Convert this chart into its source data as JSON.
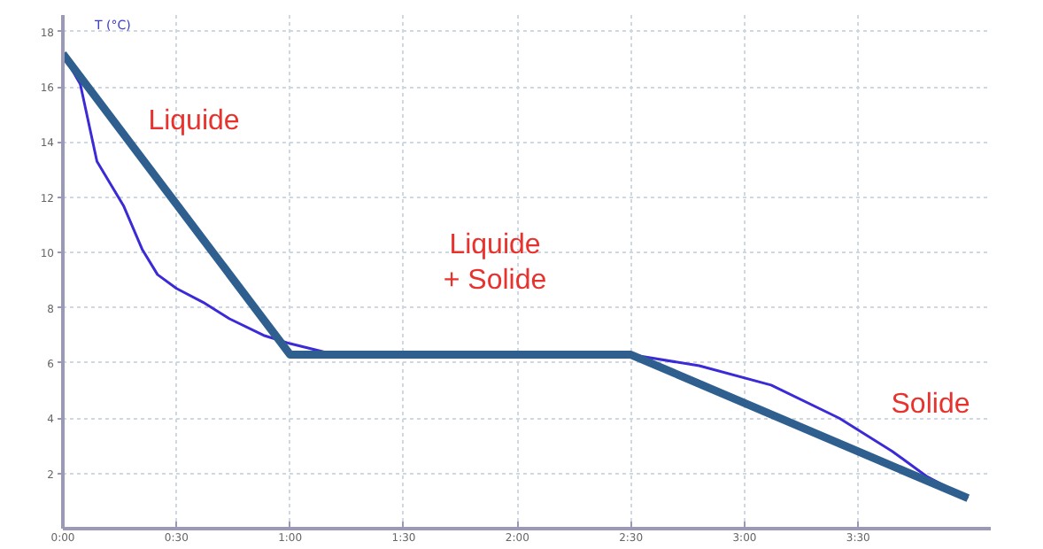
{
  "chart_data": {
    "type": "line",
    "ylabel": "T (°C)",
    "xlim": [
      0,
      245
    ],
    "ylim": [
      0,
      18.6
    ],
    "xticks": [
      {
        "value": 0,
        "label": "0:00"
      },
      {
        "value": 30,
        "label": "0:30"
      },
      {
        "value": 60,
        "label": "1:00"
      },
      {
        "value": 90,
        "label": "1:30"
      },
      {
        "value": 120,
        "label": "2:00"
      },
      {
        "value": 150,
        "label": "2:30"
      },
      {
        "value": 180,
        "label": "3:00"
      },
      {
        "value": 210,
        "label": "3:30"
      }
    ],
    "yticks": [
      2,
      4,
      6,
      8,
      10,
      12,
      14,
      16,
      18
    ],
    "grid": true,
    "line_style": "solid",
    "marker": "none",
    "series": [
      {
        "color": "#3a2bd6",
        "x": [
          0,
          4.6,
          9,
          16,
          21,
          25,
          30,
          37,
          44,
          53,
          60,
          69,
          78,
          150,
          168,
          187,
          205,
          219,
          228,
          239
        ],
        "values": [
          17.2,
          16.1,
          13.3,
          11.7,
          10.1,
          9.2,
          8.7,
          8.2,
          7.6,
          7.0,
          6.7,
          6.4,
          6.3,
          6.3,
          5.9,
          5.2,
          4.0,
          2.8,
          1.9,
          1.1
        ]
      },
      {
        "color": "#2e5f8f",
        "x": [
          0,
          60,
          150,
          239
        ],
        "values": [
          17.2,
          6.3,
          6.3,
          1.1
        ]
      }
    ],
    "annotations": [
      "Liquide",
      "Liquide\n+ Solide",
      "Solide"
    ]
  }
}
